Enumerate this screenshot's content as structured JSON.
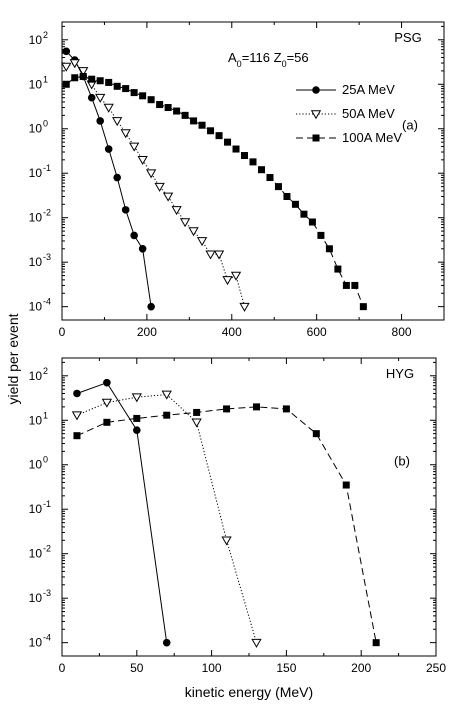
{
  "chart_data": [
    {
      "type": "line",
      "panel_label": "(a)",
      "source_label": "PSG",
      "annotation": {
        "A": "A",
        "A_sub": "0",
        "A_val": "=116",
        "Z": "Z",
        "Z_sub": "0",
        "Z_val": "=56"
      },
      "xlim": [
        0,
        900
      ],
      "ylim_log10": [
        -4.3,
        2.4
      ],
      "log_y": true,
      "x_ticks": [
        0,
        200,
        400,
        600,
        800
      ],
      "x_tick_labels": [
        "0",
        "200",
        "400",
        "600",
        "800"
      ],
      "y_tick_exponents": [
        2,
        1,
        0,
        -1,
        -2,
        -3,
        -4
      ],
      "legend_placement": "upper-right",
      "series": [
        {
          "name": "25A MeV",
          "marker": "circle-filled",
          "line": "solid",
          "x": [
            10,
            30,
            50,
            70,
            90,
            110,
            130,
            150,
            170,
            190,
            210
          ],
          "y": [
            55,
            35,
            15,
            5,
            1.5,
            0.35,
            0.08,
            0.015,
            0.004,
            0.002,
            0.0001
          ]
        },
        {
          "name": "50A MeV",
          "marker": "triangle-down-open",
          "line": "dotted",
          "x": [
            10,
            30,
            50,
            70,
            90,
            110,
            130,
            150,
            170,
            190,
            210,
            230,
            250,
            270,
            290,
            310,
            330,
            350,
            370,
            390,
            410,
            430
          ],
          "y": [
            25,
            30,
            20,
            10,
            5,
            3,
            1.5,
            0.8,
            0.4,
            0.2,
            0.1,
            0.05,
            0.03,
            0.015,
            0.008,
            0.005,
            0.003,
            0.0015,
            0.0015,
            0.0004,
            0.0005,
            0.0001
          ]
        },
        {
          "name": "100A MeV",
          "marker": "square-filled",
          "line": "dashed",
          "x": [
            10,
            30,
            50,
            70,
            90,
            110,
            130,
            150,
            170,
            190,
            210,
            230,
            250,
            270,
            290,
            310,
            330,
            350,
            370,
            390,
            410,
            430,
            450,
            470,
            490,
            510,
            530,
            550,
            570,
            590,
            610,
            630,
            650,
            670,
            690,
            710
          ],
          "y": [
            10,
            14,
            15,
            13,
            12,
            11,
            9,
            8,
            6.5,
            5.5,
            4.5,
            3.5,
            3,
            2.5,
            2,
            1.5,
            1.2,
            0.9,
            0.7,
            0.5,
            0.35,
            0.25,
            0.18,
            0.12,
            0.08,
            0.05,
            0.03,
            0.02,
            0.012,
            0.008,
            0.004,
            0.002,
            0.0007,
            0.0003,
            0.0003,
            0.0001
          ]
        }
      ]
    },
    {
      "type": "line",
      "panel_label": "(b)",
      "source_label": "HYG",
      "xlim": [
        0,
        250
      ],
      "ylim_log10": [
        -4.3,
        2.4
      ],
      "log_y": true,
      "x_ticks": [
        0,
        50,
        100,
        150,
        200,
        250
      ],
      "x_tick_labels": [
        "0",
        "50",
        "100",
        "150",
        "200",
        "250"
      ],
      "y_tick_exponents": [
        2,
        1,
        0,
        -1,
        -2,
        -3,
        -4
      ],
      "series": [
        {
          "name": "25A MeV",
          "marker": "circle-filled",
          "line": "solid",
          "x": [
            10,
            30,
            50,
            70
          ],
          "y": [
            40,
            70,
            6,
            0.0001
          ]
        },
        {
          "name": "50A MeV",
          "marker": "triangle-down-open",
          "line": "dotted",
          "x": [
            10,
            30,
            50,
            70,
            90,
            110,
            130
          ],
          "y": [
            13,
            25,
            33,
            38,
            9,
            0.02,
            0.0001
          ]
        },
        {
          "name": "100A MeV",
          "marker": "square-filled",
          "line": "dashed",
          "x": [
            10,
            30,
            50,
            70,
            90,
            110,
            130,
            150,
            170,
            190,
            210
          ],
          "y": [
            4.5,
            9,
            11,
            13,
            15,
            18,
            20,
            18,
            5,
            0.35,
            0.0001
          ]
        }
      ]
    }
  ],
  "ylabel": "yield per event",
  "xlabel": "kinetic energy (MeV)",
  "tick_base": "10"
}
